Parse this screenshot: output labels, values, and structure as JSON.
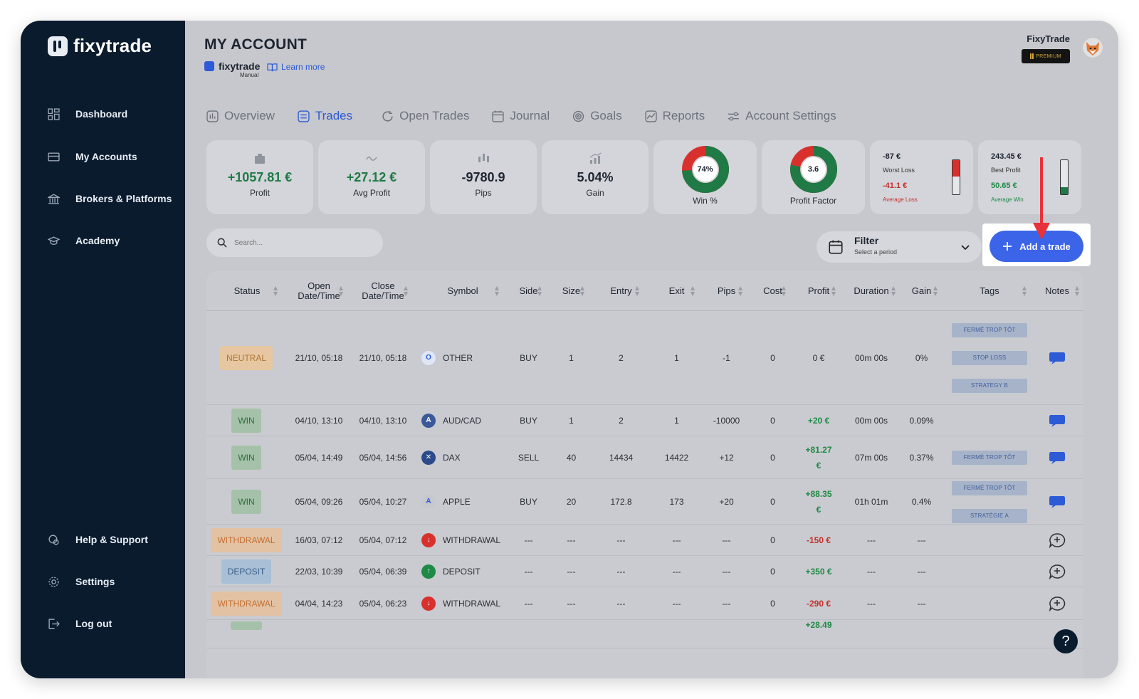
{
  "app": {
    "brand": "fixytrade"
  },
  "sidebar": {
    "items": [
      {
        "label": "Dashboard",
        "icon": "grid-icon"
      },
      {
        "label": "My Accounts",
        "icon": "card-icon"
      },
      {
        "label": "Brokers & Platforms",
        "icon": "bank-icon"
      },
      {
        "label": "Academy",
        "icon": "graduation-icon"
      }
    ],
    "bottom_items": [
      {
        "label": "Help & Support",
        "icon": "support-icon"
      },
      {
        "label": "Settings",
        "icon": "gear-icon"
      },
      {
        "label": "Log out",
        "icon": "logout-icon"
      }
    ]
  },
  "header": {
    "title": "MY ACCOUNT",
    "account_brand": "fixytrade",
    "account_type": "Manual",
    "learn_more": "Learn more",
    "user_name": "FixyTrade",
    "plan_badge": "PREMIUM"
  },
  "tabs": [
    {
      "label": "Overview",
      "icon": "overview-icon"
    },
    {
      "label": "Trades",
      "icon": "trades-icon",
      "active": true
    },
    {
      "label": "Open Trades",
      "icon": "refresh-icon"
    },
    {
      "label": "Journal",
      "icon": "calendar-icon"
    },
    {
      "label": "Goals",
      "icon": "target-icon"
    },
    {
      "label": "Reports",
      "icon": "chart-icon"
    },
    {
      "label": "Account Settings",
      "icon": "sliders-icon"
    }
  ],
  "stats": {
    "profit": {
      "value": "+1057.81 €",
      "label": "Profit"
    },
    "avg_profit": {
      "value": "+27.12 €",
      "label": "Avg Profit"
    },
    "pips": {
      "value": "-9780.9",
      "label": "Pips"
    },
    "gain": {
      "value": "5.04%",
      "label": "Gain"
    },
    "win_rate": {
      "value": "74%",
      "label": "Win %",
      "fraction": 0.74
    },
    "profit_factor": {
      "value": "3.6",
      "label": "Profit Factor",
      "fraction": 0.78
    },
    "worst": {
      "worst_loss": "-87 €",
      "worst_loss_label": "Worst Loss",
      "avg_loss": "-41.1 €",
      "avg_loss_label": "Average Loss",
      "fill": 0.47
    },
    "best": {
      "best_profit": "243.45 €",
      "best_profit_label": "Best Profit",
      "avg_win": "50.65 €",
      "avg_win_label": "Average Win",
      "fill": 0.21
    }
  },
  "toolbar": {
    "search_placeholder": "Search...",
    "filter_title": "Filter",
    "filter_sub": "Select a period",
    "add_trade": "Add a trade"
  },
  "colors": {
    "accent": "#3b64e8",
    "profit": "#1f8a45",
    "loss": "#c5302b",
    "sidebar": "#0a1b2e"
  },
  "table": {
    "headers": {
      "status": "Status",
      "open1": "Open",
      "open2": "Date/Time",
      "close1": "Close",
      "close2": "Date/Time",
      "symbol": "Symbol",
      "side": "Side",
      "size": "Size",
      "entry": "Entry",
      "exit": "Exit",
      "pips": "Pips",
      "cost": "Cost",
      "profit": "Profit",
      "duration": "Duration",
      "gain": "Gain",
      "tags": "Tags",
      "notes": "Notes"
    },
    "rows": [
      {
        "status": "NEUTRAL",
        "open": "21/10, 05:18",
        "close": "21/10, 05:18",
        "symbol": "OTHER",
        "side": "BUY",
        "size": "1",
        "entry": "2",
        "exit": "1",
        "pips": "-1",
        "cost": "0",
        "profit": "0 €",
        "duration": "00m 00s",
        "gain": "0%",
        "tags": [
          "FERMÉ TROP TÔT",
          "STOP LOSS",
          "STRATEGY B"
        ]
      },
      {
        "status": "WIN",
        "open": "04/10, 13:10",
        "close": "04/10, 13:10",
        "symbol": "AUD/CAD",
        "side": "BUY",
        "size": "1",
        "entry": "2",
        "exit": "1",
        "pips": "-10000",
        "cost": "0",
        "profit": "+20 €",
        "duration": "00m 00s",
        "gain": "0.09%",
        "tags": []
      },
      {
        "status": "WIN",
        "open": "05/04, 14:49",
        "close": "05/04, 14:56",
        "symbol": "DAX",
        "side": "SELL",
        "size": "40",
        "entry": "14434",
        "exit": "14422",
        "pips": "+12",
        "cost": "0",
        "profit_a": "+81.27",
        "profit_b": "€",
        "duration": "07m 00s",
        "gain": "0.37%",
        "tags": [
          "FERMÉ TROP TÔT"
        ]
      },
      {
        "status": "WIN",
        "open": "05/04, 09:26",
        "close": "05/04, 10:27",
        "symbol": "APPLE",
        "side": "BUY",
        "size": "20",
        "entry": "172.8",
        "exit": "173",
        "pips": "+20",
        "cost": "0",
        "profit_a": "+88.35",
        "profit_b": "€",
        "duration": "01h 01m",
        "gain": "0.4%",
        "tags": [
          "FERMÉ TROP TÔT",
          "STRATÉGIE A"
        ]
      },
      {
        "status": "WITHDRAWAL",
        "open": "16/03, 07:12",
        "close": "05/04, 07:12",
        "symbol": "WITHDRAWAL",
        "side": "---",
        "size": "---",
        "entry": "---",
        "exit": "---",
        "pips": "---",
        "cost": "0",
        "profit": "-150 €",
        "duration": "---",
        "gain": "---"
      },
      {
        "status": "DEPOSIT",
        "open": "22/03, 10:39",
        "close": "05/04, 06:39",
        "symbol": "DEPOSIT",
        "side": "---",
        "size": "---",
        "entry": "---",
        "exit": "---",
        "pips": "---",
        "cost": "0",
        "profit": "+350 €",
        "duration": "---",
        "gain": "---"
      },
      {
        "status": "WITHDRAWAL",
        "open": "04/04, 14:23",
        "close": "05/04, 06:23",
        "symbol": "WITHDRAWAL",
        "side": "---",
        "size": "---",
        "entry": "---",
        "exit": "---",
        "pips": "---",
        "cost": "0",
        "profit": "-290 €",
        "duration": "---",
        "gain": "---"
      },
      {
        "profit_partial": "+28.49"
      }
    ]
  },
  "help_button": "?"
}
